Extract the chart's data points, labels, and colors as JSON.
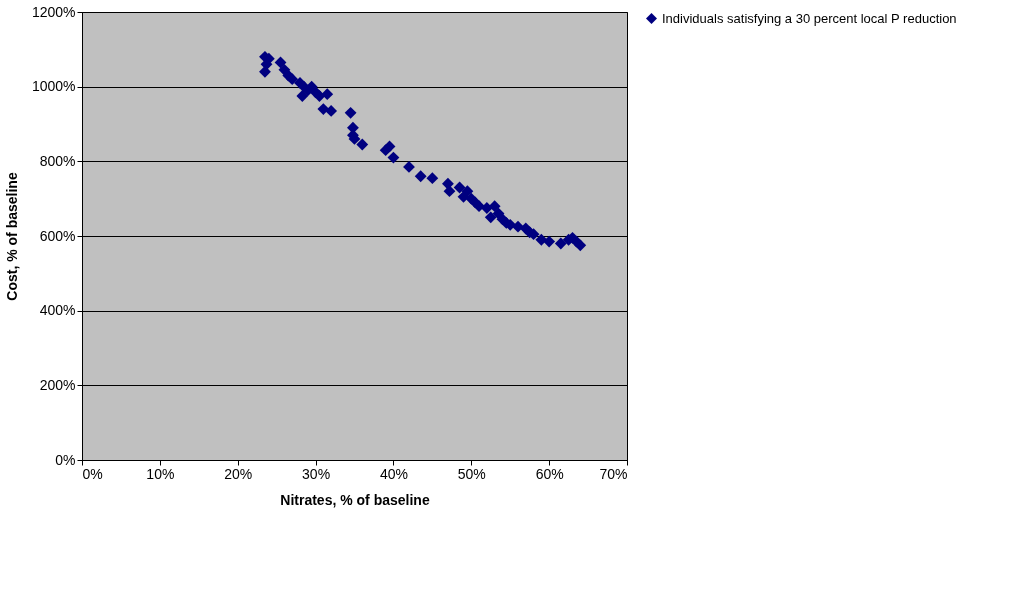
{
  "chart_data": {
    "type": "scatter",
    "xlabel": "Nitrates, % of baseline",
    "ylabel": "Cost, % of baseline",
    "x": [
      23.5,
      23.7,
      23.5,
      24,
      25.5,
      26,
      26.5,
      27,
      28,
      28.5,
      28.3,
      29,
      29.5,
      30,
      30.5,
      31,
      31.5,
      32,
      34.5,
      34.8,
      34.8,
      35,
      36,
      39,
      39.5,
      40,
      42,
      43.5,
      45,
      47,
      47.2,
      48.5,
      49,
      49.5,
      50,
      50.5,
      51,
      52,
      52.5,
      53,
      53.5,
      54,
      54.5,
      55,
      56,
      57,
      57.5,
      58,
      59,
      60,
      61.5,
      62.5,
      63,
      64,
      63.5
    ],
    "series": [
      {
        "name": "Individuals satisfying a 30 percent local P reduction",
        "color": "#000080",
        "values": [
          1080,
          1060,
          1040,
          1075,
          1065,
          1045,
          1030,
          1020,
          1010,
          1000,
          975,
          990,
          1000,
          985,
          975,
          940,
          980,
          935,
          930,
          890,
          870,
          860,
          845,
          830,
          840,
          810,
          785,
          760,
          755,
          740,
          720,
          730,
          705,
          720,
          700,
          690,
          680,
          675,
          650,
          680,
          660,
          645,
          635,
          630,
          625,
          620,
          610,
          605,
          590,
          585,
          580,
          590,
          595,
          575,
          585
        ]
      }
    ],
    "xlim": [
      0,
      70
    ],
    "xticks": [
      {
        "value": 0,
        "label": "0%"
      },
      {
        "value": 10,
        "label": "10%"
      },
      {
        "value": 20,
        "label": "20%"
      },
      {
        "value": 30,
        "label": "30%"
      },
      {
        "value": 40,
        "label": "40%"
      },
      {
        "value": 50,
        "label": "50%"
      },
      {
        "value": 60,
        "label": "60%"
      },
      {
        "value": 70,
        "label": "70%"
      }
    ],
    "ylim": [
      0,
      1200
    ],
    "yticks": [
      {
        "value": 0,
        "label": "0%"
      },
      {
        "value": 200,
        "label": "200%"
      },
      {
        "value": 400,
        "label": "400%"
      },
      {
        "value": 600,
        "label": "600%"
      },
      {
        "value": 800,
        "label": "800%"
      },
      {
        "value": 1000,
        "label": "1000%"
      },
      {
        "value": 1200,
        "label": "1200%"
      }
    ],
    "grid": "y",
    "legend": "right",
    "marker": "diamond"
  }
}
